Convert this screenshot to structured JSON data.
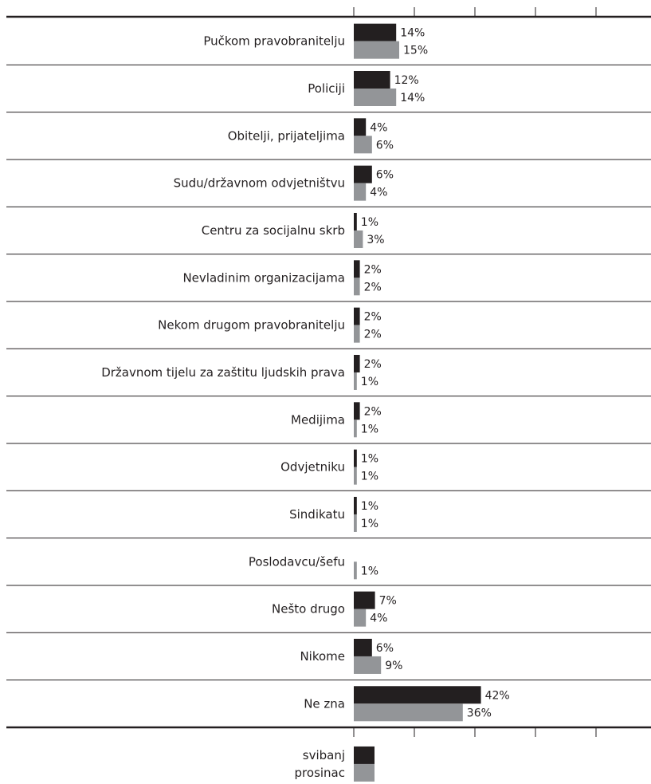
{
  "chart_data": {
    "type": "bar",
    "orientation": "horizontal",
    "categories": [
      "Pučkom pravobranitelju",
      "Policiji",
      "Obitelji, prijateljima",
      "Sudu/državnom odvjetništvu",
      "Centru za socijalnu skrb",
      "Nevladinim organizacijama",
      "Nekom drugom pravobranitelju",
      "Državnom tijelu za zaštitu ljudskih prava",
      "Medijima",
      "Odvjetniku",
      "Sindikatu",
      "Poslodavcu/šefu",
      "Nešto drugo",
      "Nikome",
      "Ne zna"
    ],
    "series": [
      {
        "name": "svibanj",
        "values": [
          14,
          12,
          4,
          6,
          1,
          2,
          2,
          2,
          2,
          1,
          1,
          null,
          7,
          6,
          42
        ],
        "labels": [
          "14%",
          "12%",
          "4%",
          "6%",
          "1%",
          "2%",
          "2%",
          "2%",
          "2%",
          "1%",
          "1%",
          "",
          "7%",
          "6%",
          "42%"
        ],
        "color": "#231f20"
      },
      {
        "name": "prosinac",
        "values": [
          15,
          14,
          6,
          4,
          3,
          2,
          2,
          1,
          1,
          1,
          1,
          1,
          4,
          9,
          36
        ],
        "labels": [
          "15%",
          "14%",
          "6%",
          "4%",
          "3%",
          "2%",
          "2%",
          "1%",
          "1%",
          "1%",
          "1%",
          "1%",
          "4%",
          "9%",
          "36%"
        ],
        "color": "#939598"
      }
    ],
    "xlim": [
      0,
      50
    ],
    "grid": false,
    "legend_placement": "bottom"
  }
}
